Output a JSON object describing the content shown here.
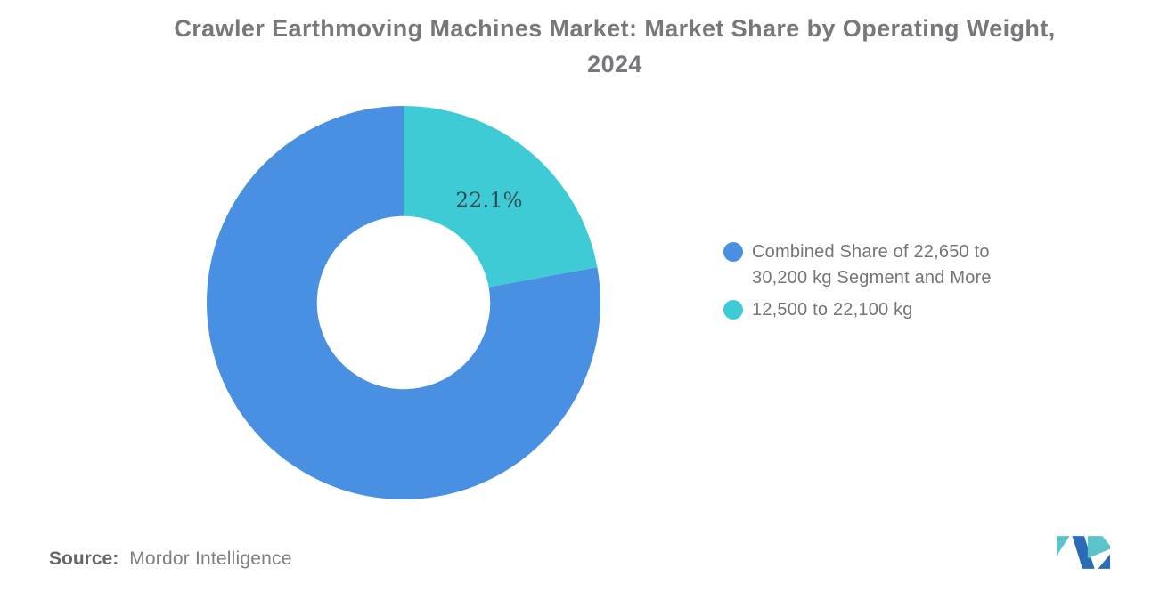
{
  "header": {
    "line1": "Crawler Earthmoving Machines Market: Market Share by Operating Weight,",
    "line2": "2024"
  },
  "chart_data": {
    "type": "pie",
    "donut": true,
    "title": "Crawler Earthmoving Machines Market: Market Share by Operating Weight, 2024",
    "series": [
      {
        "name": "Combined Share of 22,650 to 30,200 kg Segment and More",
        "value": 77.9,
        "color": "#4A90E2",
        "data_label": null
      },
      {
        "name": "12,500 to 22,100 kg",
        "value": 22.1,
        "color": "#3FCBD6",
        "data_label": "22.1%"
      }
    ],
    "start_angle_deg": 79.6,
    "inner_radius_ratio": 0.44,
    "label_radius_ratio": 0.68,
    "data_label_color": "#2F4D56",
    "legend_position": "right",
    "background": "#FFFFFF"
  },
  "source": {
    "label": "Source:",
    "value": "Mordor Intelligence"
  },
  "logo": {
    "name": "mordor-intelligence-logo",
    "teal": "#5BC4CB",
    "blue": "#2B6CB8"
  }
}
